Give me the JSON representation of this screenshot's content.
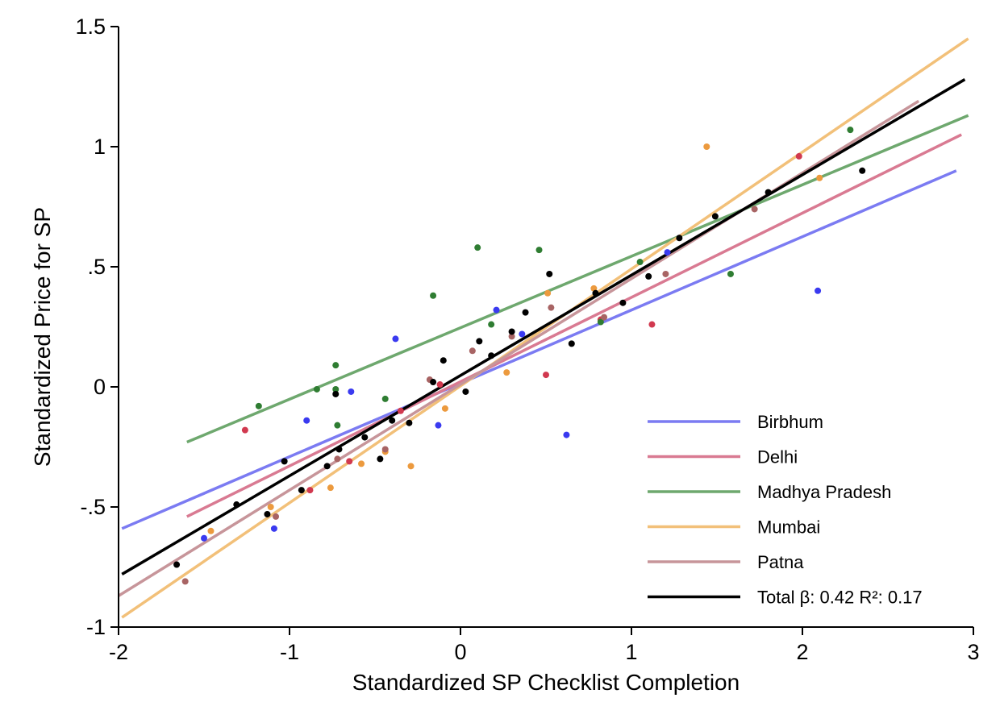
{
  "chart_data": {
    "type": "scatter",
    "xlabel": "Standardized SP Checklist Completion",
    "ylabel": "Standardized Price for SP",
    "xlim": [
      -2,
      3
    ],
    "ylim": [
      -1,
      1.5
    ],
    "x_ticks": [
      {
        "value": -2,
        "label": "-2"
      },
      {
        "value": -1,
        "label": "-1"
      },
      {
        "value": 0,
        "label": "0"
      },
      {
        "value": 1,
        "label": "1"
      },
      {
        "value": 2,
        "label": "2"
      },
      {
        "value": 3,
        "label": "3"
      }
    ],
    "y_ticks": [
      {
        "value": -1,
        "label": "-1"
      },
      {
        "value": -0.5,
        "label": "-.5"
      },
      {
        "value": 0,
        "label": "0"
      },
      {
        "value": 0.5,
        "label": ".5"
      },
      {
        "value": 1,
        "label": "1"
      },
      {
        "value": 1.5,
        "label": "1.5"
      }
    ],
    "grid": false,
    "legend_position": "bottom-right",
    "series": [
      {
        "name": "Birbhum",
        "color": "#7b7bf2",
        "point_color": "#3a3af0",
        "fit": {
          "x": [
            -1.98,
            2.9
          ],
          "y": [
            -0.59,
            0.9
          ]
        },
        "points": [
          [
            -1.5,
            -0.63
          ],
          [
            -1.09,
            -0.59
          ],
          [
            -0.9,
            -0.14
          ],
          [
            -0.64,
            -0.02
          ],
          [
            -0.38,
            0.2
          ],
          [
            -0.13,
            -0.16
          ],
          [
            0.21,
            0.32
          ],
          [
            0.36,
            0.22
          ],
          [
            0.62,
            -0.2
          ],
          [
            1.21,
            0.56
          ],
          [
            2.09,
            0.4
          ]
        ]
      },
      {
        "name": "Delhi",
        "color": "#d97a92",
        "point_color": "#d1394f",
        "fit": {
          "x": [
            -1.6,
            2.93
          ],
          "y": [
            -0.54,
            1.05
          ]
        },
        "points": [
          [
            -1.26,
            -0.18
          ],
          [
            -0.88,
            -0.43
          ],
          [
            -0.65,
            -0.31
          ],
          [
            -0.35,
            -0.1
          ],
          [
            -0.12,
            0.01
          ],
          [
            0.5,
            0.05
          ],
          [
            0.82,
            0.28
          ],
          [
            1.12,
            0.26
          ],
          [
            1.98,
            0.96
          ]
        ]
      },
      {
        "name": "Madhya Pradesh",
        "color": "#6ea86e",
        "point_color": "#2f7d32",
        "fit": {
          "x": [
            -1.6,
            2.97
          ],
          "y": [
            -0.23,
            1.13
          ]
        },
        "points": [
          [
            -1.18,
            -0.08
          ],
          [
            -0.84,
            -0.01
          ],
          [
            -0.73,
            0.09
          ],
          [
            -0.73,
            -0.01
          ],
          [
            -0.72,
            -0.16
          ],
          [
            -0.44,
            -0.05
          ],
          [
            -0.16,
            0.38
          ],
          [
            0.1,
            0.58
          ],
          [
            0.18,
            0.26
          ],
          [
            0.46,
            0.57
          ],
          [
            0.82,
            0.27
          ],
          [
            1.05,
            0.52
          ],
          [
            1.58,
            0.47
          ],
          [
            2.28,
            1.07
          ]
        ]
      },
      {
        "name": "Mumbai",
        "color": "#f2c079",
        "point_color": "#ec9a3e",
        "fit": {
          "x": [
            -1.98,
            2.97
          ],
          "y": [
            -0.96,
            1.45
          ]
        },
        "points": [
          [
            -1.46,
            -0.6
          ],
          [
            -1.11,
            -0.5
          ],
          [
            -0.76,
            -0.42
          ],
          [
            -0.58,
            -0.32
          ],
          [
            -0.44,
            -0.27
          ],
          [
            -0.29,
            -0.33
          ],
          [
            -0.09,
            -0.09
          ],
          [
            0.27,
            0.06
          ],
          [
            0.51,
            0.39
          ],
          [
            0.78,
            0.41
          ],
          [
            1.44,
            1.0
          ],
          [
            2.1,
            0.87
          ]
        ]
      },
      {
        "name": "Patna",
        "color": "#c7959a",
        "point_color": "#a86464",
        "fit": {
          "x": [
            -2.0,
            2.68
          ],
          "y": [
            -0.87,
            1.19
          ]
        },
        "points": [
          [
            -1.61,
            -0.81
          ],
          [
            -1.08,
            -0.54
          ],
          [
            -0.72,
            -0.3
          ],
          [
            -0.44,
            -0.26
          ],
          [
            -0.18,
            0.03
          ],
          [
            0.07,
            0.15
          ],
          [
            0.3,
            0.21
          ],
          [
            0.53,
            0.33
          ],
          [
            0.84,
            0.29
          ],
          [
            1.2,
            0.47
          ],
          [
            1.72,
            0.74
          ]
        ]
      },
      {
        "name": "Total β: 0.42 R²: 0.17",
        "color": "#000000",
        "point_color": "#000000",
        "fit": {
          "x": [
            -1.98,
            2.95
          ],
          "y": [
            -0.78,
            1.28
          ]
        },
        "points": [
          [
            -1.66,
            -0.74
          ],
          [
            -1.31,
            -0.49
          ],
          [
            -1.13,
            -0.53
          ],
          [
            -1.03,
            -0.31
          ],
          [
            -0.93,
            -0.43
          ],
          [
            -0.78,
            -0.33
          ],
          [
            -0.73,
            -0.03
          ],
          [
            -0.71,
            -0.26
          ],
          [
            -0.56,
            -0.21
          ],
          [
            -0.47,
            -0.3
          ],
          [
            -0.4,
            -0.14
          ],
          [
            -0.3,
            -0.15
          ],
          [
            -0.16,
            0.02
          ],
          [
            -0.1,
            0.11
          ],
          [
            0.03,
            -0.02
          ],
          [
            0.11,
            0.19
          ],
          [
            0.18,
            0.13
          ],
          [
            0.3,
            0.23
          ],
          [
            0.38,
            0.31
          ],
          [
            0.52,
            0.47
          ],
          [
            0.65,
            0.18
          ],
          [
            0.79,
            0.39
          ],
          [
            0.95,
            0.35
          ],
          [
            1.1,
            0.46
          ],
          [
            1.28,
            0.62
          ],
          [
            1.49,
            0.71
          ],
          [
            1.8,
            0.81
          ],
          [
            2.35,
            0.9
          ]
        ]
      }
    ]
  }
}
